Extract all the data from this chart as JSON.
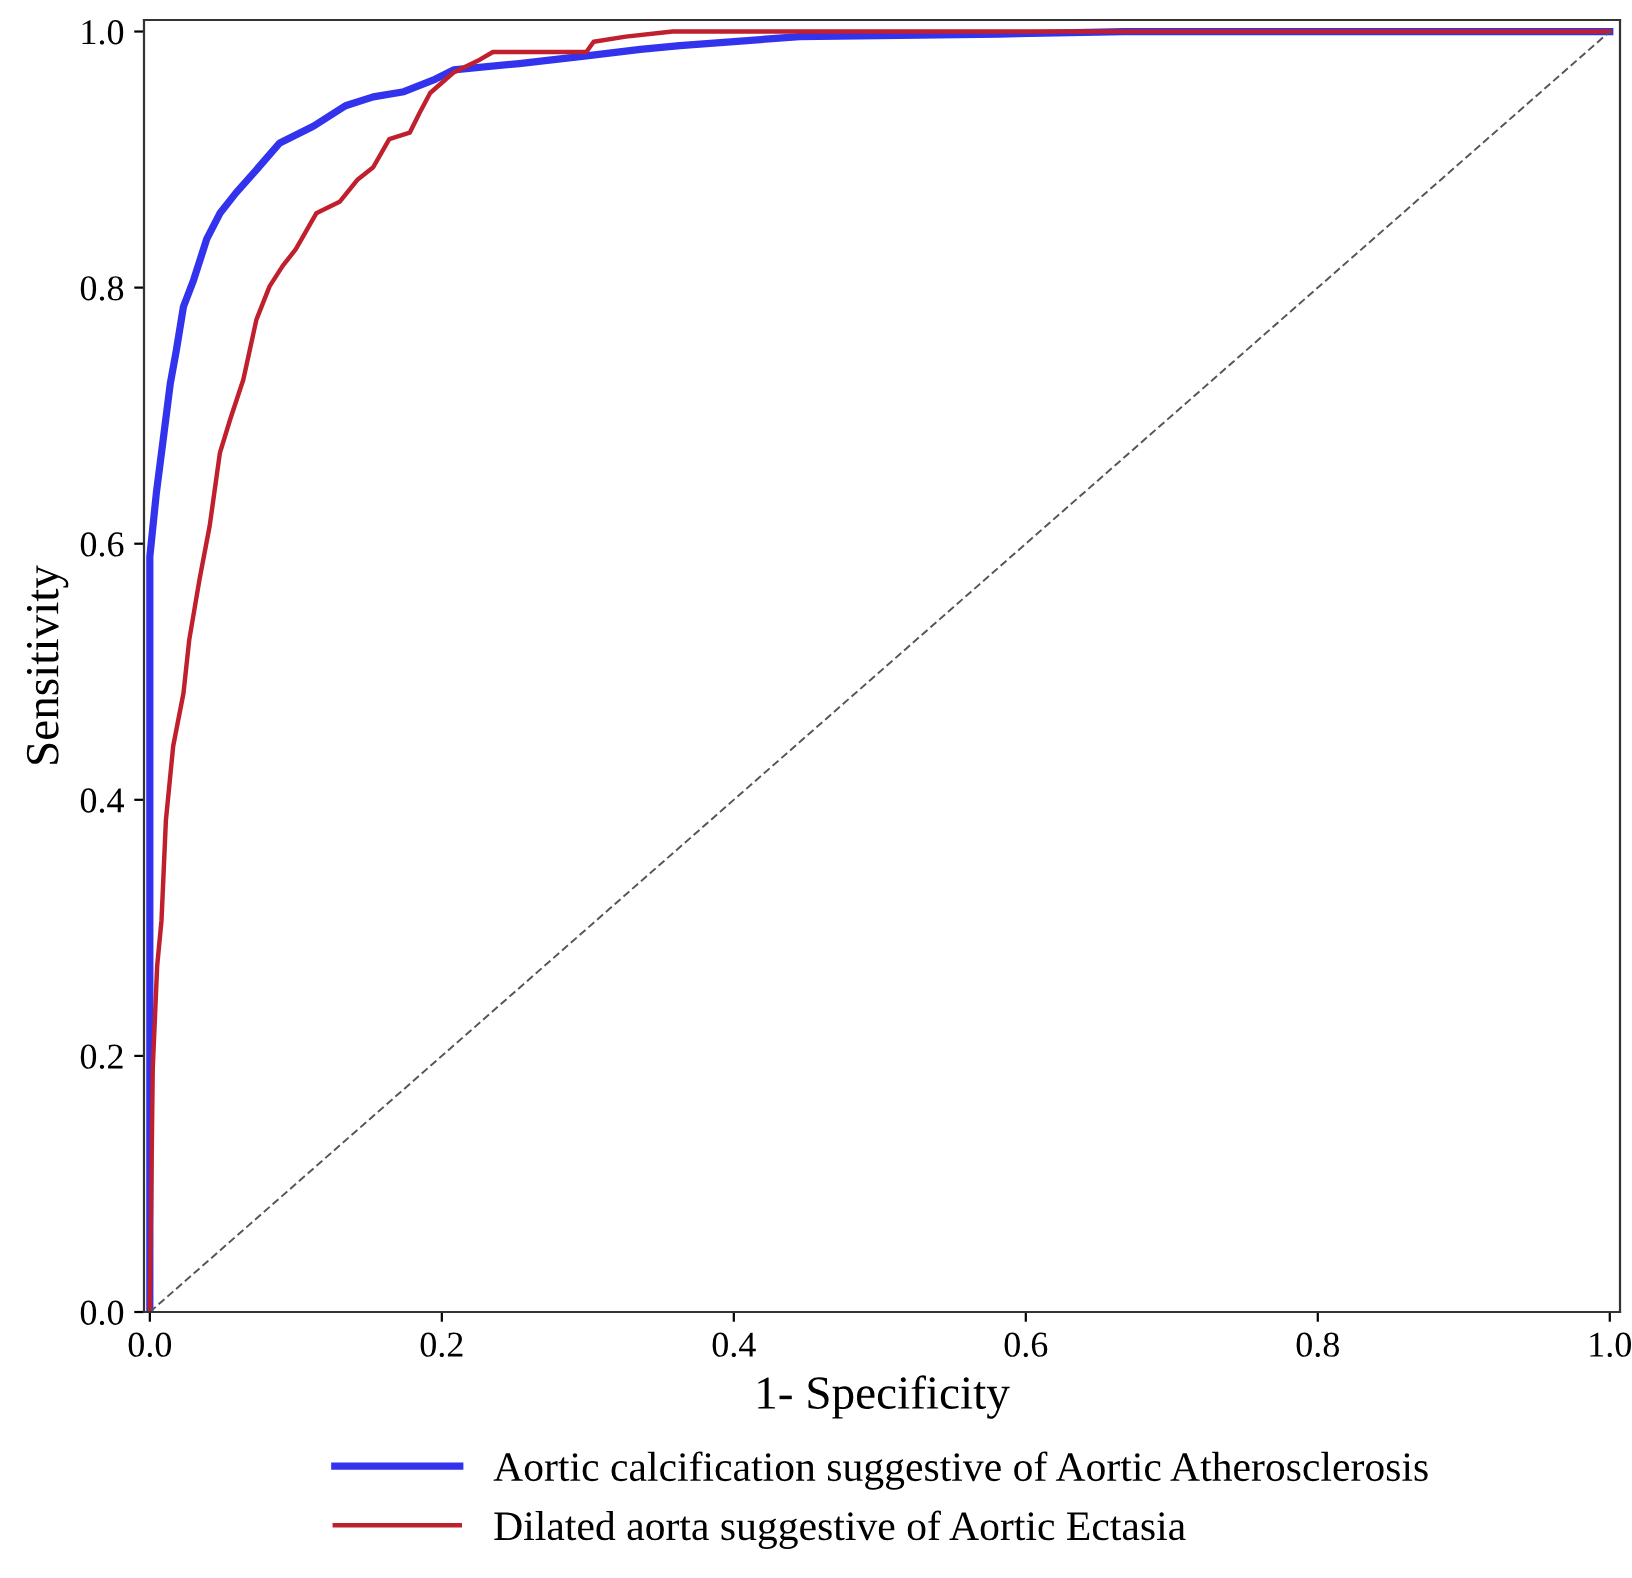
{
  "chart_data": {
    "type": "line",
    "xlabel": "1- Specificity",
    "ylabel": "Sensitivity",
    "xlim": [
      -0.004,
      1.007
    ],
    "ylim": [
      0,
      1.009
    ],
    "xticks": [
      {
        "value": 0,
        "label": "0.0"
      },
      0.2,
      0.4,
      0.6,
      0.8,
      {
        "value": 1,
        "label": "1.0"
      }
    ],
    "yticks": [
      {
        "value": 0,
        "label": "0.0"
      },
      0.2,
      0.4,
      0.6,
      0.8,
      {
        "value": 1,
        "label": "1.0"
      }
    ],
    "grid": false,
    "legend": "bottom",
    "marker": "none",
    "series": [
      {
        "name": "Aortic calcification suggestive of Aortic Atherosclerosis",
        "color": "#3333ee",
        "line_style": "solid",
        "x": [
          0,
          0,
          0,
          0.0045,
          0.009,
          0.014,
          0.018,
          0.023,
          0.03,
          0.039,
          0.048,
          0.059,
          0.073,
          0.089,
          0.112,
          0.134,
          0.153,
          0.174,
          0.194,
          0.208,
          0.253,
          0.299,
          0.336,
          0.363,
          0.445,
          0.582,
          0.667,
          1
        ],
        "values": [
          0,
          0.35,
          0.59,
          0.64,
          0.68,
          0.725,
          0.75,
          0.785,
          0.806,
          0.838,
          0.858,
          0.874,
          0.892,
          0.913,
          0.926,
          0.942,
          0.949,
          0.953,
          0.962,
          0.97,
          0.975,
          0.981,
          0.986,
          0.989,
          0.996,
          0.998,
          1,
          1
        ]
      },
      {
        "name": "Dilated aorta suggestive of Aortic Ectasia",
        "color": "#c0202e",
        "line_style": "solid",
        "x": [
          0,
          0,
          0.002,
          0.005,
          0.008,
          0.011,
          0.016,
          0.023,
          0.027,
          0.034,
          0.041,
          0.048,
          0.055,
          0.064,
          0.073,
          0.082,
          0.091,
          0.1,
          0.114,
          0.13,
          0.142,
          0.153,
          0.164,
          0.178,
          0.185,
          0.192,
          0.208,
          0.226,
          0.235,
          0.299,
          0.304,
          0.326,
          0.358,
          1
        ],
        "values": [
          0,
          0.005,
          0.19,
          0.27,
          0.306,
          0.384,
          0.442,
          0.483,
          0.525,
          0.572,
          0.614,
          0.671,
          0.697,
          0.728,
          0.775,
          0.801,
          0.817,
          0.83,
          0.858,
          0.867,
          0.884,
          0.894,
          0.916,
          0.921,
          0.937,
          0.952,
          0.968,
          0.978,
          0.984,
          0.984,
          0.992,
          0.996,
          1,
          1
        ]
      },
      {
        "color": "#555555",
        "line_style": "dashed",
        "x": [
          0,
          1
        ],
        "values": [
          0,
          1
        ]
      }
    ]
  }
}
